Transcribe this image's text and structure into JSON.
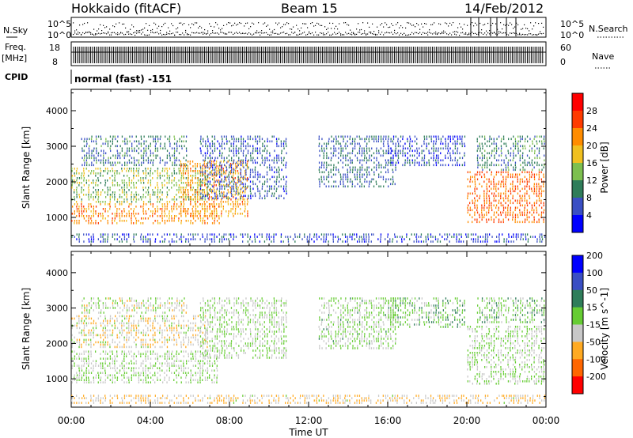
{
  "header": {
    "station": "Hokkaido (fitACF)",
    "beam": "Beam 15",
    "date": "14/Feb/2012"
  },
  "strip_panels": {
    "nsky_label": "N.Sky",
    "nsearch_label": "N.Search",
    "nsky_ticks": [
      "10^5",
      "10^0"
    ],
    "freq_label_line1": "Freq.",
    "freq_label_line2": "[MHz]",
    "freq_ticks": [
      "18",
      "8"
    ],
    "nave_label": "Nave",
    "nave_ticks": [
      "60",
      "0"
    ],
    "cpid_label": "CPID",
    "cpid_text": "normal (fast) -151"
  },
  "chart_data": [
    {
      "type": "heatmap",
      "title": "",
      "xlabel": "",
      "ylabel": "Slant Range [km]",
      "x_ticks": [
        "00:00",
        "04:00",
        "08:00",
        "12:00",
        "16:00",
        "20:00",
        "00:00"
      ],
      "x_range_hours": [
        0,
        24
      ],
      "y_ticks": [
        1000,
        2000,
        3000,
        4000
      ],
      "ylim": [
        200,
        4600
      ],
      "colorbar": {
        "label": "Power [dB]",
        "ticks": [
          4,
          8,
          12,
          16,
          20,
          24,
          28
        ],
        "range": [
          0,
          32
        ],
        "colors": [
          "#0000ff",
          "#3a4fc4",
          "#2f7d5a",
          "#7dbf4f",
          "#f0c020",
          "#ff8c00",
          "#ff3b00",
          "#ff0000"
        ]
      },
      "scatter_regions": [
        {
          "t0": 0.0,
          "t1": 7.6,
          "r0": 800,
          "r1": 1400,
          "value": 22
        },
        {
          "t0": 0.0,
          "t1": 7.0,
          "r0": 1400,
          "r1": 2400,
          "value": 14
        },
        {
          "t0": 0.5,
          "t1": 6.0,
          "r0": 2400,
          "r1": 3300,
          "value": 9
        },
        {
          "t0": 5.5,
          "t1": 9.0,
          "r0": 1000,
          "r1": 2600,
          "value": 21
        },
        {
          "t0": 6.5,
          "t1": 11.0,
          "r0": 1500,
          "r1": 3300,
          "value": 7
        },
        {
          "t0": 12.5,
          "t1": 16.5,
          "r0": 1800,
          "r1": 3300,
          "value": 8
        },
        {
          "t0": 16.0,
          "t1": 20.0,
          "r0": 2400,
          "r1": 3300,
          "value": 6
        },
        {
          "t0": 20.0,
          "t1": 24.0,
          "r0": 800,
          "r1": 2300,
          "value": 24
        },
        {
          "t0": 20.5,
          "t1": 24.0,
          "r0": 2300,
          "r1": 3300,
          "value": 10
        },
        {
          "t0": 0.0,
          "t1": 24.0,
          "r0": 250,
          "r1": 550,
          "value": 6
        }
      ]
    },
    {
      "type": "heatmap",
      "title": "",
      "xlabel": "Time UT",
      "ylabel": "Slant Range [km]",
      "x_ticks": [
        "00:00",
        "04:00",
        "08:00",
        "12:00",
        "16:00",
        "20:00",
        "00:00"
      ],
      "x_range_hours": [
        0,
        24
      ],
      "y_ticks": [
        1000,
        2000,
        3000,
        4000
      ],
      "ylim": [
        200,
        4600
      ],
      "colorbar": {
        "label": "Velocity [m s^-1]",
        "ticks": [
          -200,
          -100,
          -50,
          -15,
          15,
          50,
          100,
          200
        ],
        "range": [
          -250,
          250
        ],
        "colors": [
          "#ff0000",
          "#ff6600",
          "#ffaa22",
          "#c8c8c8",
          "#66cc33",
          "#2f7d5a",
          "#3a4fc4",
          "#0000ff"
        ]
      },
      "scatter_regions": [
        {
          "t0": 0.0,
          "t1": 7.5,
          "r0": 800,
          "r1": 1800,
          "value": 0
        },
        {
          "t0": 0.0,
          "t1": 7.0,
          "r0": 1800,
          "r1": 2800,
          "value": -40
        },
        {
          "t0": 0.5,
          "t1": 6.0,
          "r0": 2800,
          "r1": 3300,
          "value": -20
        },
        {
          "t0": 6.5,
          "t1": 11.0,
          "r0": 1500,
          "r1": 3300,
          "value": 0
        },
        {
          "t0": 12.5,
          "t1": 16.5,
          "r0": 1800,
          "r1": 3300,
          "value": 5
        },
        {
          "t0": 16.0,
          "t1": 20.0,
          "r0": 2400,
          "r1": 3300,
          "value": 40
        },
        {
          "t0": 20.0,
          "t1": 24.0,
          "r0": 800,
          "r1": 2500,
          "value": 0
        },
        {
          "t0": 20.5,
          "t1": 24.0,
          "r0": 2500,
          "r1": 3300,
          "value": 30
        },
        {
          "t0": 0.0,
          "t1": 24.0,
          "r0": 250,
          "r1": 550,
          "value": -60
        }
      ]
    }
  ]
}
